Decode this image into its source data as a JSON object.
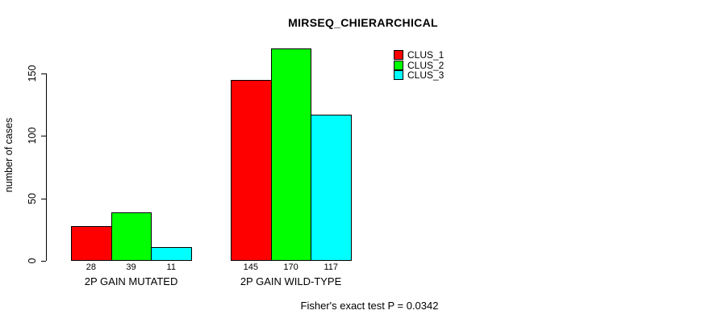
{
  "figure": {
    "title": "MIRSEQ_CHIERARCHICAL",
    "footer": "Fisher's exact test P = 0.0342"
  },
  "chart_data": {
    "type": "bar",
    "title": "MIRSEQ_CHIERARCHICAL",
    "xlabel": "",
    "ylabel": "number of cases",
    "categories": [
      "2P GAIN MUTATED",
      "2P GAIN WILD-TYPE"
    ],
    "series": [
      {
        "name": "CLUS_1",
        "color": "#ff0000",
        "values": [
          28,
          145
        ]
      },
      {
        "name": "CLUS_2",
        "color": "#00ff00",
        "values": [
          39,
          170
        ]
      },
      {
        "name": "CLUS_3",
        "color": "#00ffff",
        "values": [
          11,
          117
        ]
      }
    ],
    "bar_value_labels": [
      [
        "28",
        "39",
        "11"
      ],
      [
        "145",
        "170",
        "117"
      ]
    ],
    "yticks": [
      0,
      50,
      100,
      150
    ],
    "ylim": [
      0,
      170
    ],
    "grid": false,
    "legend_position": "top-right",
    "annotation": "Fisher's exact test P = 0.0342",
    "background_color": "#ffffff",
    "axis_color": "#000000"
  }
}
